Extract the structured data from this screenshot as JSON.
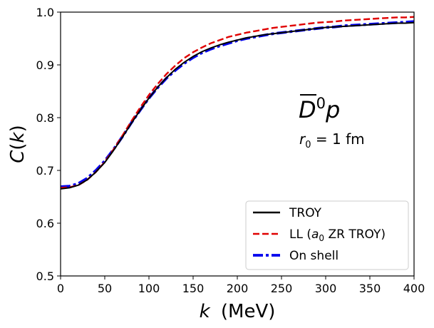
{
  "chart_data": {
    "type": "line",
    "title": "",
    "xlabel_var": "k",
    "xlabel_unit": "(MeV)",
    "ylabel_fn": "C",
    "ylabel_arg": "k",
    "xlim": [
      0,
      400
    ],
    "ylim": [
      0.5,
      1.0
    ],
    "xticks": [
      0,
      50,
      100,
      150,
      200,
      250,
      300,
      350,
      400
    ],
    "xtick_labels": [
      "0",
      "50",
      "100",
      "150",
      "200",
      "250",
      "300",
      "350",
      "400"
    ],
    "yticks": [
      0.5,
      0.6,
      0.7,
      0.8,
      0.9,
      1.0
    ],
    "ytick_labels": [
      "0.5",
      "0.6",
      "0.7",
      "0.8",
      "0.9",
      "1.0"
    ],
    "grid": false,
    "legend_position": "lower-right",
    "x": [
      0,
      10,
      20,
      30,
      40,
      50,
      60,
      70,
      80,
      90,
      100,
      110,
      120,
      130,
      140,
      150,
      160,
      170,
      180,
      190,
      200,
      210,
      220,
      230,
      240,
      250,
      260,
      270,
      280,
      290,
      300,
      310,
      320,
      330,
      340,
      350,
      360,
      370,
      380,
      390,
      400
    ],
    "series": [
      {
        "name": "TROY",
        "color": "#000000",
        "style": "solid",
        "values": [
          0.665,
          0.667,
          0.672,
          0.682,
          0.697,
          0.715,
          0.738,
          0.763,
          0.789,
          0.814,
          0.837,
          0.858,
          0.876,
          0.892,
          0.905,
          0.916,
          0.925,
          0.932,
          0.938,
          0.943,
          0.947,
          0.951,
          0.954,
          0.957,
          0.959,
          0.961,
          0.963,
          0.965,
          0.967,
          0.969,
          0.971,
          0.972,
          0.973,
          0.974,
          0.975,
          0.976,
          0.977,
          0.978,
          0.979,
          0.979,
          0.98
        ]
      },
      {
        "name_prefix": "LL (",
        "name_var": "a",
        "name_sub": "0",
        "name_suffix": " ZR TROY)",
        "color": "#e00000",
        "style": "dashed",
        "values": [
          0.667,
          0.668,
          0.672,
          0.682,
          0.697,
          0.716,
          0.74,
          0.766,
          0.793,
          0.819,
          0.843,
          0.864,
          0.883,
          0.899,
          0.913,
          0.924,
          0.933,
          0.941,
          0.947,
          0.953,
          0.957,
          0.961,
          0.964,
          0.967,
          0.97,
          0.972,
          0.974,
          0.976,
          0.978,
          0.98,
          0.981,
          0.982,
          0.984,
          0.985,
          0.986,
          0.987,
          0.988,
          0.989,
          0.99,
          0.99,
          0.991
        ]
      },
      {
        "name": "On shell",
        "color": "#0000ee",
        "style": "dashdot",
        "values": [
          0.669,
          0.67,
          0.675,
          0.685,
          0.7,
          0.718,
          0.74,
          0.764,
          0.79,
          0.814,
          0.837,
          0.857,
          0.875,
          0.89,
          0.903,
          0.914,
          0.923,
          0.93,
          0.936,
          0.941,
          0.946,
          0.95,
          0.953,
          0.956,
          0.959,
          0.961,
          0.963,
          0.965,
          0.967,
          0.969,
          0.971,
          0.972,
          0.974,
          0.975,
          0.976,
          0.977,
          0.978,
          0.979,
          0.98,
          0.981,
          0.982
        ]
      }
    ],
    "annotations": {
      "particle_base": "D",
      "particle_sup": "0",
      "particle_tail": "p",
      "radius_var": "r",
      "radius_sub": "0",
      "radius_text": " = 1 fm"
    }
  }
}
